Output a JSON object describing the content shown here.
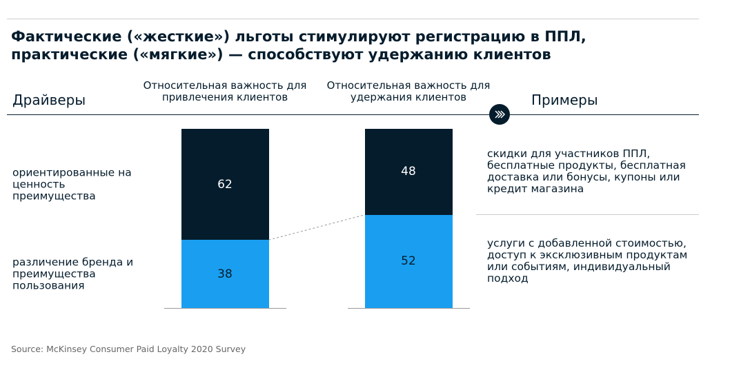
{
  "chart_data": {
    "type": "stacked-bar",
    "title": "Фактические («жесткие») льготы стимулируют регистрацию в ППЛ, практические («мягкие») — способствуют удержанию клиентов",
    "drivers_heading": "Драйверы",
    "examples_heading": "Примеры",
    "categories": [
      "Относительная важность для привлечения клиентов",
      "Относительная важность для удержания клиентов"
    ],
    "series": [
      {
        "name": "различение бренда и преимущества пользования",
        "color": "#1a9ff0",
        "label_color": "#051c2c",
        "values": [
          38,
          52
        ],
        "example": "услуги с добавленной стоимостью, доступ к эксклюзивным продуктам или событиям, индивидуальный подход"
      },
      {
        "name": "ориентированные на ценность преимущества",
        "color": "#051c2c",
        "label_color": "#ffffff",
        "values": [
          62,
          48
        ],
        "example": "скидки для участников ППЛ, бесплатные продукты, бесплатная доставка или бонусы, купоны или кредит магазина"
      }
    ],
    "source": "Source: McKinsey Consumer Paid Loyalty 2020 Survey"
  }
}
